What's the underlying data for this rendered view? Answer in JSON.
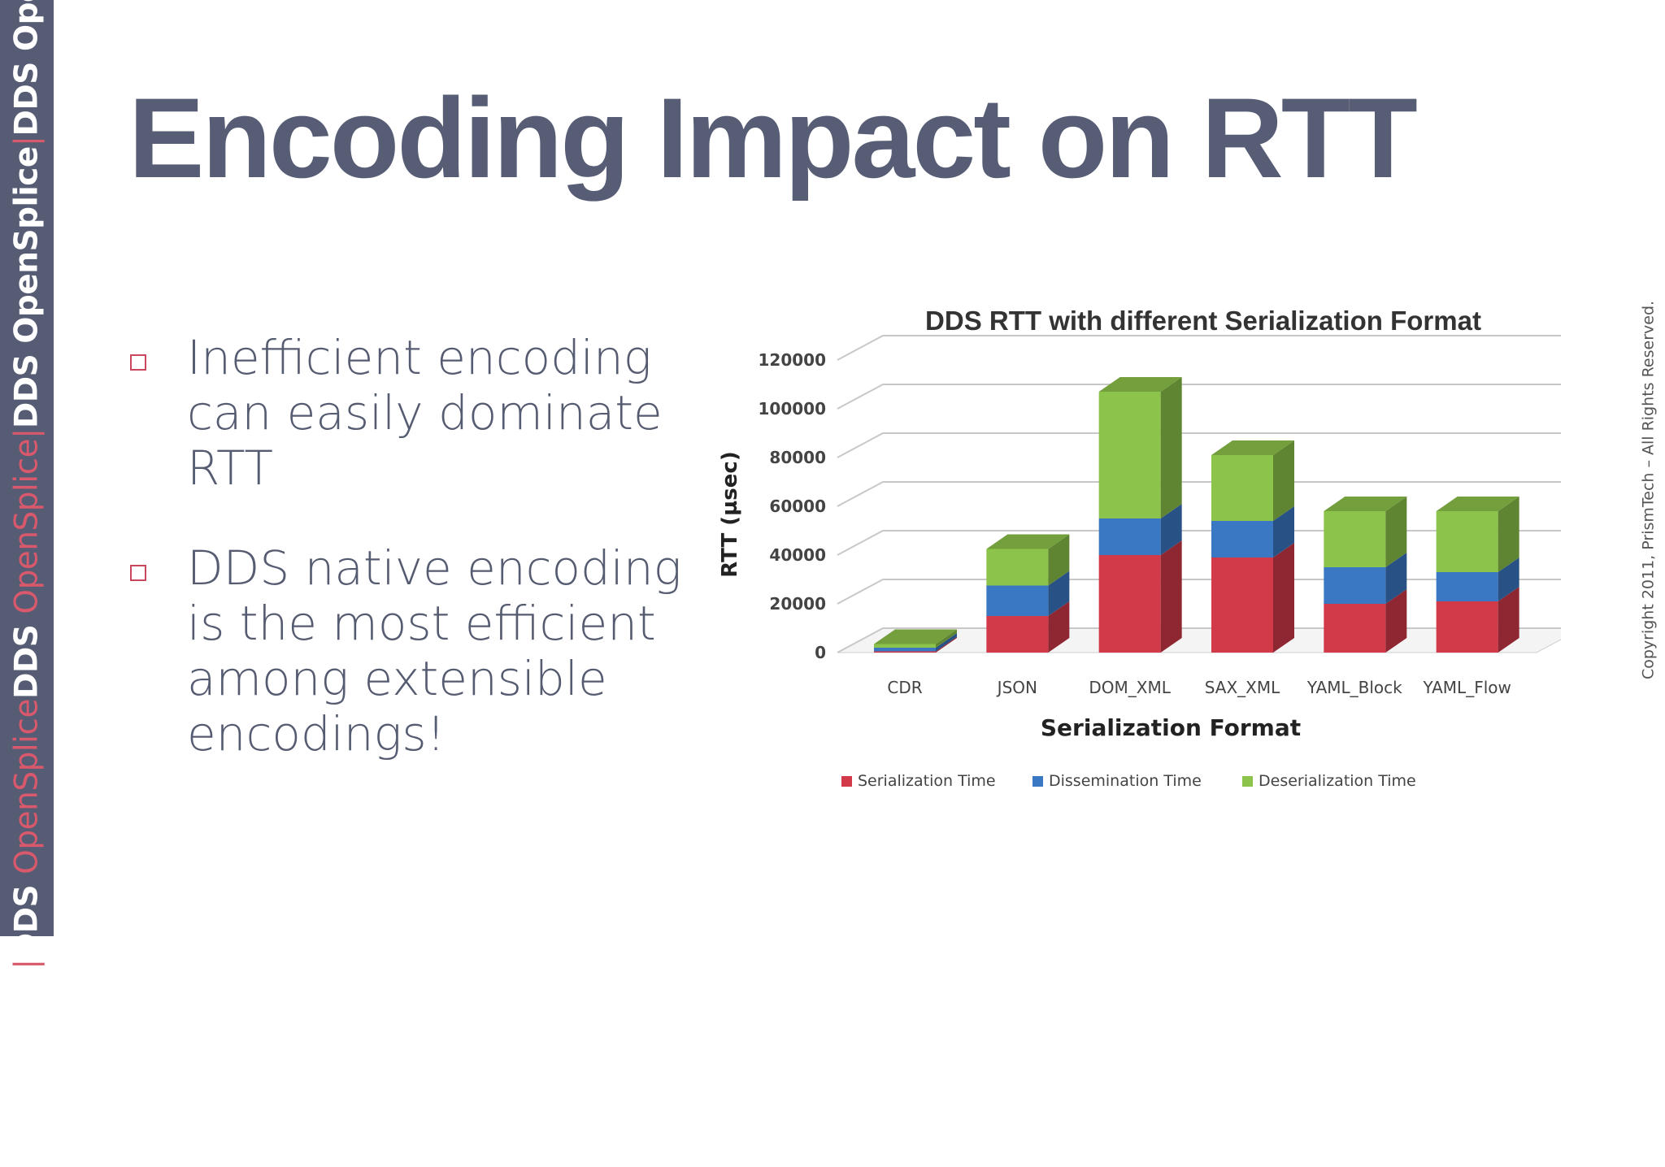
{
  "sidebar": {
    "segments": [
      {
        "text": "OpenSplice",
        "style": "w"
      },
      {
        "text": "|",
        "style": "r"
      },
      {
        "text": "DDS ",
        "style": "w"
      },
      {
        "text": "OpenSplice",
        "style": "r"
      },
      {
        "text": "DDS ",
        "style": "w"
      },
      {
        "text": "OpenSplice",
        "style": "r"
      },
      {
        "text": "|",
        "style": "r"
      },
      {
        "text": "DDS ",
        "style": "w"
      },
      {
        "text": "OpenSplice",
        "style": "w"
      },
      {
        "text": "|",
        "style": "r"
      },
      {
        "text": "DDS ",
        "style": "w"
      },
      {
        "text": "OpenSplice",
        "style": "w"
      },
      {
        "text": "|",
        "style": "r"
      },
      {
        "text": "DDS",
        "style": "w"
      }
    ]
  },
  "slide": {
    "title": "Encoding Impact on RTT",
    "bullets": [
      "Inefficient encoding can easily dominate RTT",
      "DDS native encoding is the most efficient among extensible encodings!"
    ],
    "copyright": "Copyright 2011, PrismTech –  All Rights Reserved."
  },
  "chart_data": {
    "type": "bar",
    "stacked": true,
    "three_d": true,
    "title": "DDS RTT with different Serialization Format",
    "xlabel": "Serialization Format",
    "ylabel": "RTT (µsec)",
    "ylim": [
      0,
      120000
    ],
    "yticks": [
      "0",
      "20000",
      "40000",
      "60000",
      "80000",
      "100000",
      "120000"
    ],
    "grid": true,
    "legend_position": "bottom",
    "categories": [
      "CDR",
      "JSON",
      "DOM_XML",
      "SAX_XML",
      "YAML_Block",
      "YAML_Flow"
    ],
    "series": [
      {
        "name": "Serialization Time",
        "color": "#d23a4a",
        "values": [
          500,
          15000,
          40000,
          39000,
          20000,
          21000
        ]
      },
      {
        "name": "Dissemination Time",
        "color": "#3b78c4",
        "values": [
          1500,
          12500,
          15000,
          15000,
          15000,
          12000
        ]
      },
      {
        "name": "Deserialization Time",
        "color": "#8cc34a",
        "values": [
          1500,
          15000,
          52000,
          27000,
          23000,
          25000
        ]
      }
    ]
  }
}
